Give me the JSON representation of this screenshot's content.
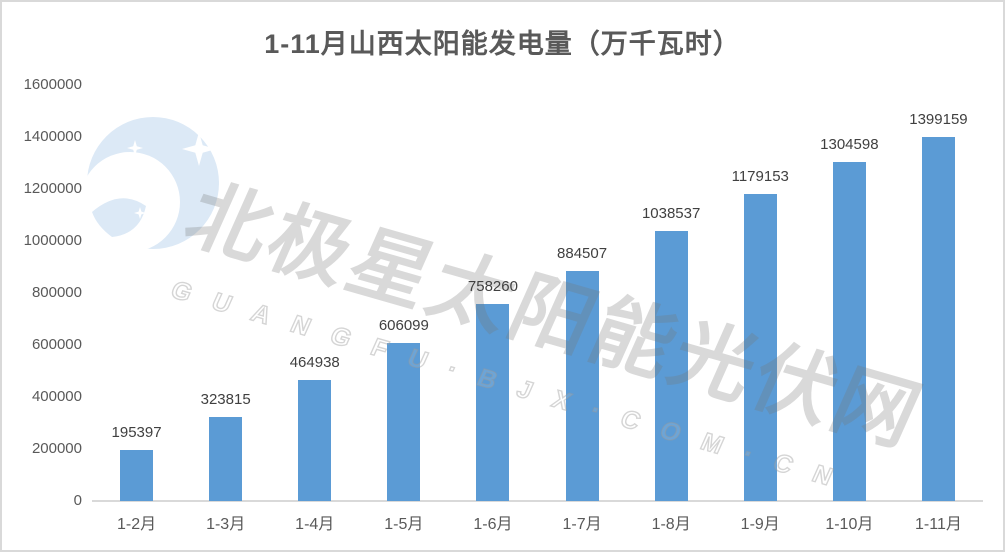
{
  "title": "1-11月山西太阳能发电量（万千瓦时）",
  "watermark": {
    "logo_name": "bjx-polaris-logo",
    "cn_text": "北极星太阳能光伏网",
    "en_text": "GUANGFU·BJX·COM·CN"
  },
  "colors": {
    "bar": "#5B9BD5",
    "title_text": "#595959",
    "axis_text": "#595959",
    "data_label_text": "#404040",
    "axis_line": "#D9D9D9",
    "frame_border": "#D9D9D9",
    "watermark_gray": "#D9D9D9",
    "logo_blue": "#DCE9F6"
  },
  "chart_data": {
    "type": "bar",
    "title": "1-11月山西太阳能发电量（万千瓦时）",
    "categories": [
      "1-2月",
      "1-3月",
      "1-4月",
      "1-5月",
      "1-6月",
      "1-7月",
      "1-8月",
      "1-9月",
      "1-10月",
      "1-11月"
    ],
    "values": [
      195397,
      323815,
      464938,
      606099,
      758260,
      884507,
      1038537,
      1179153,
      1304598,
      1399159
    ],
    "xlabel": "",
    "ylabel": "",
    "ylim": [
      0,
      1600000
    ],
    "yticks": [
      0,
      200000,
      400000,
      600000,
      800000,
      1000000,
      1200000,
      1400000,
      1600000
    ],
    "grid": false,
    "legend": false,
    "data_labels": true
  }
}
